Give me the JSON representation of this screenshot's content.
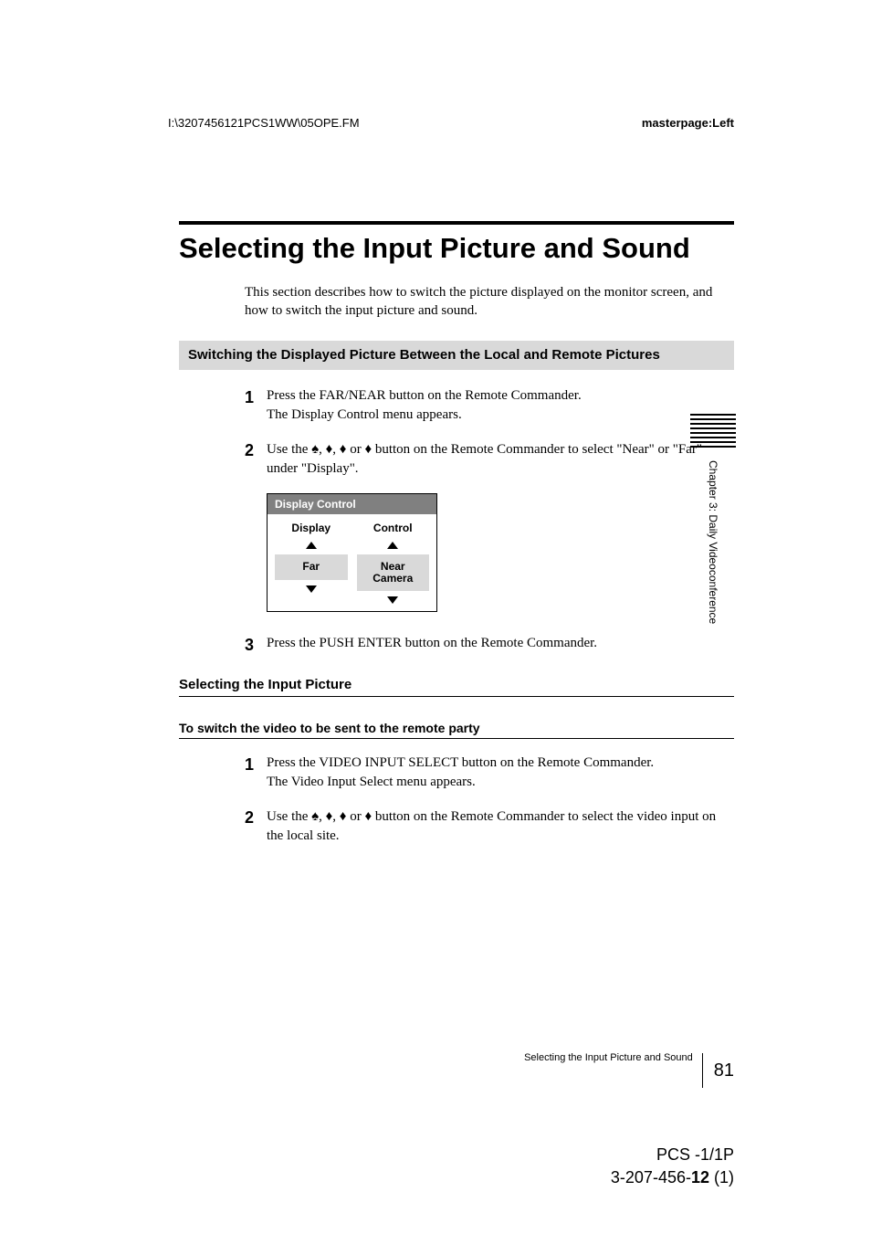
{
  "header": {
    "file_path": "I:\\3207456121PCS1WW\\05OPE.FM",
    "master_page": "masterpage:Left"
  },
  "title": "Selecting the Input Picture and Sound",
  "intro": "This section describes how to switch the picture displayed on the monitor screen, and how to switch the input picture and sound.",
  "section1": {
    "heading": "Switching the Displayed Picture Between the Local and Remote Pictures",
    "steps": [
      {
        "num": "1",
        "text1": "Press the FAR/NEAR button on the Remote Commander.",
        "text2": "The Display Control menu appears."
      },
      {
        "num": "2",
        "text1": "Use the ♦, ♦, ♦ or ♦ button on the Remote Commander to select \"Near\" or \"Far\" under \"Display\"."
      },
      {
        "num": "3",
        "text1": "Press the PUSH ENTER button on the Remote Commander."
      }
    ]
  },
  "display_control": {
    "title": "Display Control",
    "col1_label": "Display",
    "col1_value": "Far",
    "col2_label": "Control",
    "col2_value": "Near Camera"
  },
  "section2": {
    "heading": "Selecting the Input Picture",
    "subheading": "To switch the video to be sent to the remote party",
    "steps": [
      {
        "num": "1",
        "text1": "Press the VIDEO INPUT SELECT button on the Remote Commander.",
        "text2": "The Video Input Select menu appears."
      },
      {
        "num": "2",
        "text1": "Use the ♦, ♦, ♦ or ♦ button on the Remote Commander to select the video input on the local site."
      }
    ]
  },
  "sidebar": {
    "chapter": "Chapter 3: Daily Videoconference"
  },
  "footer": {
    "label": "Selecting the Input Picture and Sound",
    "page_num": "81",
    "model": "PCS -1/1P",
    "doc_num_prefix": "3-207-456-",
    "doc_num_bold": "12",
    "doc_num_suffix": " (1)"
  }
}
